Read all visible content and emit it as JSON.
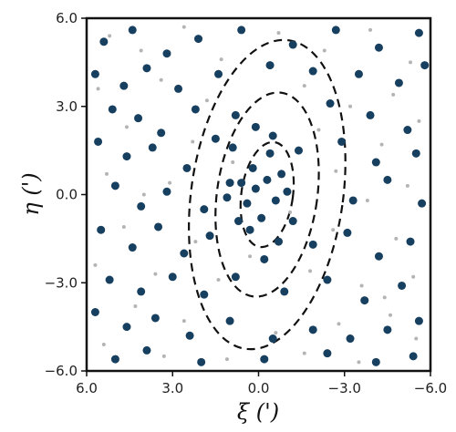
{
  "chart_data": {
    "type": "scatter",
    "title": "",
    "xlabel": "ξ (')",
    "ylabel": "η (')",
    "xlim": [
      6.0,
      -6.0
    ],
    "ylim": [
      -6.0,
      6.0
    ],
    "x_axis_direction": "reversed (6.0 on left, -6.0 on right)",
    "x_ticks": [
      "6.0",
      "3.0",
      "0.0",
      "−3.0",
      "−6.0"
    ],
    "x_tick_values": [
      6.0,
      3.0,
      0.0,
      -3.0,
      -6.0
    ],
    "y_ticks": [
      "−6.0",
      "−3.0",
      "0.0",
      "3.0",
      "6.0"
    ],
    "y_tick_values": [
      -6.0,
      -3.0,
      0.0,
      3.0,
      6.0
    ],
    "grid": false,
    "legend": "none",
    "colors": {
      "member_stars": "#173f5f",
      "field_stars": "#b4b4b4",
      "contours": "#111111"
    },
    "contours": {
      "style": "dashed",
      "center": [
        -0.3,
        0.0
      ],
      "position_angle_deg": 8,
      "semi_major_axes": [
        1.8,
        3.5,
        5.3
      ],
      "axis_ratio": 0.5
    },
    "series": [
      {
        "marker": "small grey dots",
        "points": [
          [
            5.2,
            5.4
          ],
          [
            4.1,
            4.9
          ],
          [
            2.6,
            5.7
          ],
          [
            1.3,
            4.6
          ],
          [
            -0.7,
            5.5
          ],
          [
            -2.3,
            4.9
          ],
          [
            -3.9,
            5.6
          ],
          [
            -5.3,
            4.5
          ],
          [
            5.6,
            3.6
          ],
          [
            3.4,
            3.9
          ],
          [
            1.8,
            3.2
          ],
          [
            -1.6,
            3.7
          ],
          [
            -3.2,
            3.0
          ],
          [
            -4.7,
            3.4
          ],
          [
            4.6,
            2.3
          ],
          [
            2.3,
            1.8
          ],
          [
            -2.1,
            2.2
          ],
          [
            -4.3,
            1.7
          ],
          [
            -5.6,
            2.5
          ],
          [
            5.3,
            0.7
          ],
          [
            3.1,
            0.4
          ],
          [
            -2.7,
            0.8
          ],
          [
            -3.8,
            -0.2
          ],
          [
            -5.2,
            0.3
          ],
          [
            4.7,
            -1.1
          ],
          [
            2.2,
            -1.6
          ],
          [
            -2.6,
            -1.2
          ],
          [
            -4.8,
            -1.5
          ],
          [
            5.7,
            -2.4
          ],
          [
            3.6,
            -2.7
          ],
          [
            1.4,
            -2.9
          ],
          [
            -1.8,
            -2.6
          ],
          [
            -3.6,
            -3.1
          ],
          [
            -5.4,
            -2.8
          ],
          [
            4.3,
            -3.8
          ],
          [
            2.6,
            -4.3
          ],
          [
            -0.6,
            -4.7
          ],
          [
            -2.8,
            -4.4
          ],
          [
            -4.6,
            -4.1
          ],
          [
            5.4,
            -5.1
          ],
          [
            3.3,
            -5.5
          ],
          [
            1.1,
            -5.6
          ],
          [
            -1.6,
            -5.4
          ],
          [
            -3.5,
            -5.7
          ],
          [
            -5.5,
            -4.9
          ],
          [
            0.9,
            1.1
          ],
          [
            -1.1,
            -0.6
          ],
          [
            0.3,
            -2.1
          ],
          [
            4.0,
            0.0
          ],
          [
            -4.4,
            -3.5
          ]
        ]
      },
      {
        "marker": "large dark-blue dots",
        "points": [
          [
            5.4,
            5.2
          ],
          [
            4.4,
            5.6
          ],
          [
            3.2,
            4.8
          ],
          [
            2.1,
            5.3
          ],
          [
            0.6,
            5.6
          ],
          [
            -1.2,
            5.1
          ],
          [
            -2.7,
            5.6
          ],
          [
            -4.2,
            5.0
          ],
          [
            -5.6,
            5.5
          ],
          [
            5.7,
            4.1
          ],
          [
            4.7,
            3.7
          ],
          [
            3.9,
            4.3
          ],
          [
            2.8,
            3.6
          ],
          [
            1.4,
            4.1
          ],
          [
            -0.4,
            4.4
          ],
          [
            -1.9,
            4.2
          ],
          [
            -3.5,
            4.1
          ],
          [
            -4.9,
            3.8
          ],
          [
            -5.8,
            4.4
          ],
          [
            5.1,
            2.9
          ],
          [
            4.2,
            2.6
          ],
          [
            3.4,
            2.1
          ],
          [
            2.2,
            2.9
          ],
          [
            -2.5,
            3.1
          ],
          [
            -3.9,
            2.7
          ],
          [
            -5.2,
            2.2
          ],
          [
            5.6,
            1.8
          ],
          [
            4.6,
            1.3
          ],
          [
            3.7,
            1.6
          ],
          [
            2.5,
            0.9
          ],
          [
            1.5,
            1.9
          ],
          [
            -1.4,
            1.5
          ],
          [
            -2.9,
            1.8
          ],
          [
            -4.1,
            1.1
          ],
          [
            -5.5,
            1.4
          ],
          [
            5.0,
            0.3
          ],
          [
            4.1,
            -0.4
          ],
          [
            3.2,
            0.1
          ],
          [
            1.9,
            -0.5
          ],
          [
            1.0,
            0.4
          ],
          [
            -3.3,
            -0.2
          ],
          [
            -4.5,
            0.5
          ],
          [
            -5.7,
            -0.3
          ],
          [
            5.5,
            -1.2
          ],
          [
            4.4,
            -1.8
          ],
          [
            3.5,
            -1.1
          ],
          [
            2.6,
            -2.0
          ],
          [
            1.7,
            -1.4
          ],
          [
            -1.9,
            -1.7
          ],
          [
            -3.1,
            -1.3
          ],
          [
            -4.2,
            -2.1
          ],
          [
            -5.3,
            -1.6
          ],
          [
            5.2,
            -2.9
          ],
          [
            4.1,
            -3.3
          ],
          [
            3.0,
            -2.8
          ],
          [
            1.9,
            -3.4
          ],
          [
            0.8,
            -2.8
          ],
          [
            -0.9,
            -3.3
          ],
          [
            -2.4,
            -2.9
          ],
          [
            -3.7,
            -3.6
          ],
          [
            -5.0,
            -3.1
          ],
          [
            5.7,
            -4.0
          ],
          [
            4.6,
            -4.5
          ],
          [
            3.6,
            -4.2
          ],
          [
            2.4,
            -4.8
          ],
          [
            1.0,
            -4.3
          ],
          [
            -0.5,
            -4.9
          ],
          [
            -1.9,
            -4.6
          ],
          [
            -3.2,
            -4.9
          ],
          [
            -4.5,
            -4.6
          ],
          [
            -5.6,
            -4.3
          ],
          [
            5.0,
            -5.6
          ],
          [
            3.9,
            -5.3
          ],
          [
            2.0,
            -5.7
          ],
          [
            -0.2,
            -5.6
          ],
          [
            -2.4,
            -5.4
          ],
          [
            -4.1,
            -5.7
          ],
          [
            -5.4,
            -5.5
          ],
          [
            0.1,
            0.2
          ],
          [
            -0.3,
            0.5
          ],
          [
            0.4,
            -0.3
          ],
          [
            -0.6,
            -0.2
          ],
          [
            0.2,
            0.9
          ],
          [
            -0.1,
            -0.8
          ],
          [
            0.6,
            0.4
          ],
          [
            -0.8,
            0.7
          ],
          [
            0.3,
            -1.2
          ],
          [
            -0.4,
            1.4
          ],
          [
            0.7,
            -0.9
          ],
          [
            -1.0,
            0.1
          ],
          [
            0.9,
            1.6
          ],
          [
            -0.7,
            -1.6
          ],
          [
            0.1,
            2.3
          ],
          [
            -0.2,
            -2.2
          ],
          [
            0.8,
            2.7
          ],
          [
            -0.5,
            2.0
          ],
          [
            1.1,
            -0.1
          ],
          [
            -1.2,
            -0.9
          ]
        ]
      }
    ]
  }
}
